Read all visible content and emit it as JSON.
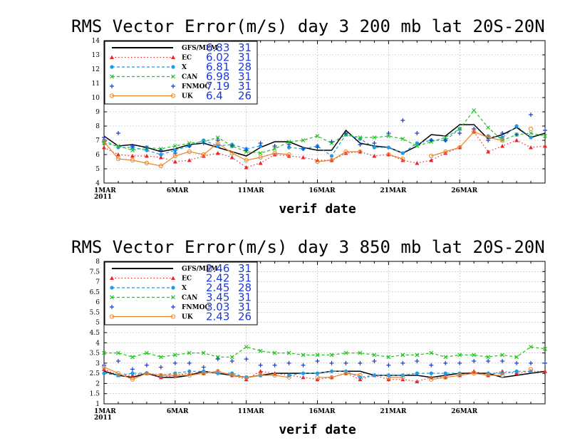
{
  "chart_data": [
    {
      "type": "line",
      "title": "RMS Vector Error(m/s) day 3  200 mb   lat 20S-20N",
      "xlabel": "verif date",
      "ylabel": "",
      "ylim": [
        4,
        14
      ],
      "yticks": [
        4,
        5,
        6,
        7,
        8,
        9,
        10,
        11,
        12,
        13,
        14
      ],
      "x_ticks": [
        {
          "day": 1,
          "label": "1MAR",
          "sublabel": "2011"
        },
        {
          "day": 6,
          "label": "6MAR"
        },
        {
          "day": 11,
          "label": "11MAR"
        },
        {
          "day": 16,
          "label": "16MAR"
        },
        {
          "day": 21,
          "label": "21MAR"
        },
        {
          "day": 26,
          "label": "26MAR"
        }
      ],
      "xlim": [
        1,
        32
      ],
      "grid": true,
      "legend_position": "top-left",
      "series": [
        {
          "name": "GFS/MEM",
          "mean": "6.83",
          "count": "31",
          "color": "#000000",
          "style": "solid",
          "marker": "none",
          "values": [
            7.3,
            6.6,
            6.7,
            6.5,
            6.2,
            6.4,
            6.7,
            6.8,
            6.5,
            6.2,
            5.9,
            6.5,
            6.9,
            6.9,
            6.5,
            6.3,
            6.3,
            7.7,
            6.8,
            6.6,
            6.5,
            6.1,
            6.6,
            7.4,
            7.3,
            8.1,
            8.1,
            7.1,
            7.4,
            7.9,
            7.2,
            7.5
          ]
        },
        {
          "name": "EC",
          "mean": "6.02",
          "count": "31",
          "color": "#e8262b",
          "style": "dotted",
          "marker": "triangle",
          "values": [
            6.5,
            6.0,
            5.9,
            5.9,
            5.8,
            5.5,
            5.6,
            5.9,
            6.1,
            5.8,
            5.1,
            5.4,
            6.0,
            5.9,
            5.8,
            5.6,
            5.6,
            6.1,
            6.2,
            5.9,
            6.0,
            5.6,
            5.4,
            5.6,
            6.1,
            6.5,
            7.6,
            6.2,
            6.6,
            7.0,
            6.5,
            6.6
          ]
        },
        {
          "name": "X",
          "mean": "6.81",
          "count": "28",
          "color": "#1e9be8",
          "style": "dashed",
          "marker": "circle",
          "values": [
            7.0,
            6.5,
            6.5,
            6.3,
            6.0,
            6.3,
            6.6,
            7.0,
            6.6,
            6.7,
            6.4,
            6.6,
            null,
            6.5,
            6.4,
            6.6,
            5.9,
            7.4,
            7.1,
            6.5,
            6.5,
            6.1,
            6.8,
            7.0,
            7.0,
            7.8,
            null,
            7.3,
            7.2,
            8.0,
            7.2,
            null
          ]
        },
        {
          "name": "CAN",
          "mean": "6.98",
          "count": "31",
          "color": "#1ec41e",
          "style": "dashed",
          "marker": "x",
          "values": [
            6.8,
            6.6,
            6.3,
            6.5,
            6.4,
            6.6,
            6.8,
            6.9,
            7.2,
            6.6,
            6.2,
            6.1,
            6.4,
            6.9,
            7.0,
            7.3,
            6.8,
            7.4,
            7.2,
            7.2,
            7.3,
            7.1,
            6.6,
            6.9,
            7.2,
            7.8,
            9.1,
            7.9,
            7.0,
            7.4,
            7.5,
            7.3
          ]
        },
        {
          "name": "FNMOC",
          "mean": "7.19",
          "count": "31",
          "color": "#1a3ad8",
          "style": "none",
          "marker": "plus",
          "values": [
            7.2,
            7.5,
            6.6,
            6.5,
            6.3,
            6.1,
            6.6,
            6.8,
            7.0,
            6.6,
            6.3,
            6.8,
            6.6,
            6.7,
            6.4,
            6.5,
            6.9,
            7.5,
            6.7,
            6.8,
            7.5,
            8.4,
            7.5,
            7.0,
            7.0,
            7.5,
            7.8,
            7.0,
            7.5,
            7.4,
            8.8,
            7.7
          ]
        },
        {
          "name": "UK",
          "mean": "6.4",
          "count": "26",
          "color": "#e8862b",
          "style": "solid",
          "marker": "circle-open",
          "values": [
            6.9,
            5.7,
            5.6,
            5.4,
            5.2,
            5.9,
            6.2,
            6.0,
            6.8,
            6.1,
            5.6,
            5.8,
            6.1,
            6.0,
            null,
            5.5,
            5.6,
            6.2,
            6.2,
            null,
            6.0,
            5.7,
            null,
            5.9,
            6.2,
            6.5,
            7.6,
            7.2,
            7.0,
            null,
            7.8,
            null
          ]
        }
      ]
    },
    {
      "type": "line",
      "title": "RMS Vector Error(m/s) day 3  850 mb   lat 20S-20N",
      "xlabel": "verif date",
      "ylabel": "",
      "ylim": [
        1,
        8
      ],
      "yticks": [
        1,
        1.5,
        2,
        2.5,
        3,
        3.5,
        4,
        4.5,
        5,
        5.5,
        6,
        6.5,
        7,
        7.5,
        8
      ],
      "x_ticks": [
        {
          "day": 1,
          "label": "1MAR",
          "sublabel": "2011"
        },
        {
          "day": 6,
          "label": "6MAR"
        },
        {
          "day": 11,
          "label": "11MAR"
        },
        {
          "day": 16,
          "label": "16MAR"
        },
        {
          "day": 21,
          "label": "21MAR"
        },
        {
          "day": 26,
          "label": "26MAR"
        }
      ],
      "xlim": [
        1,
        32
      ],
      "grid": true,
      "legend_position": "top-left",
      "series": [
        {
          "name": "GFS/MEM",
          "mean": "2.46",
          "count": "31",
          "color": "#000000",
          "style": "solid",
          "marker": "none",
          "values": [
            2.6,
            2.4,
            2.3,
            2.5,
            2.3,
            2.3,
            2.4,
            2.6,
            2.5,
            2.4,
            2.3,
            2.4,
            2.5,
            2.5,
            2.5,
            2.5,
            2.6,
            2.6,
            2.6,
            2.4,
            2.4,
            2.4,
            2.4,
            2.3,
            2.4,
            2.5,
            2.5,
            2.5,
            2.3,
            2.4,
            2.5,
            2.6
          ]
        },
        {
          "name": "EC",
          "mean": "2.42",
          "count": "31",
          "color": "#e8262b",
          "style": "dotted",
          "marker": "triangle",
          "values": [
            2.7,
            2.4,
            2.4,
            2.5,
            2.3,
            2.4,
            2.5,
            2.5,
            2.6,
            2.4,
            2.2,
            2.6,
            2.5,
            2.4,
            2.3,
            2.2,
            2.3,
            2.5,
            2.2,
            2.4,
            2.2,
            2.2,
            2.1,
            2.3,
            2.3,
            2.4,
            2.6,
            2.4,
            2.6,
            2.5,
            2.6,
            2.6
          ]
        },
        {
          "name": "X",
          "mean": "2.45",
          "count": "28",
          "color": "#1e9be8",
          "style": "dashed",
          "marker": "circle",
          "values": [
            2.5,
            2.4,
            2.5,
            2.5,
            2.4,
            2.5,
            2.6,
            2.6,
            2.5,
            2.5,
            2.3,
            2.4,
            null,
            2.4,
            2.5,
            2.5,
            2.6,
            2.6,
            2.3,
            2.4,
            2.4,
            2.4,
            2.5,
            2.5,
            2.5,
            2.5,
            null,
            2.5,
            2.5,
            2.6,
            2.6,
            null
          ]
        },
        {
          "name": "CAN",
          "mean": "3.45",
          "count": "31",
          "color": "#1ec41e",
          "style": "dashed",
          "marker": "x",
          "values": [
            3.5,
            3.5,
            3.3,
            3.5,
            3.3,
            3.4,
            3.5,
            3.5,
            3.3,
            3.3,
            3.8,
            3.6,
            3.5,
            3.5,
            3.4,
            3.4,
            3.4,
            3.5,
            3.5,
            3.4,
            3.3,
            3.4,
            3.4,
            3.5,
            3.3,
            3.4,
            3.4,
            3.3,
            3.4,
            3.3,
            3.8,
            3.7
          ]
        },
        {
          "name": "FNMOC",
          "mean": "3.03",
          "count": "31",
          "color": "#1a3ad8",
          "style": "none",
          "marker": "plus",
          "values": [
            2.9,
            3.1,
            2.7,
            2.9,
            2.8,
            3.0,
            3.0,
            2.8,
            3.2,
            3.1,
            3.2,
            2.9,
            2.9,
            3.0,
            2.9,
            3.1,
            3.0,
            3.0,
            3.0,
            3.1,
            2.9,
            3.0,
            3.1,
            2.9,
            3.0,
            3.0,
            3.1,
            3.1,
            3.1,
            3.0,
            3.0,
            3.0
          ]
        },
        {
          "name": "UK",
          "mean": "2.43",
          "count": "26",
          "color": "#e8862b",
          "style": "solid",
          "marker": "circle-open",
          "values": [
            2.8,
            2.5,
            2.2,
            2.5,
            2.4,
            2.4,
            2.4,
            2.5,
            2.6,
            2.4,
            2.3,
            2.4,
            2.4,
            2.3,
            null,
            2.3,
            2.3,
            2.5,
            2.4,
            null,
            2.3,
            2.3,
            null,
            2.2,
            2.3,
            2.4,
            2.5,
            2.4,
            2.4,
            null,
            2.7,
            null
          ]
        }
      ]
    }
  ]
}
